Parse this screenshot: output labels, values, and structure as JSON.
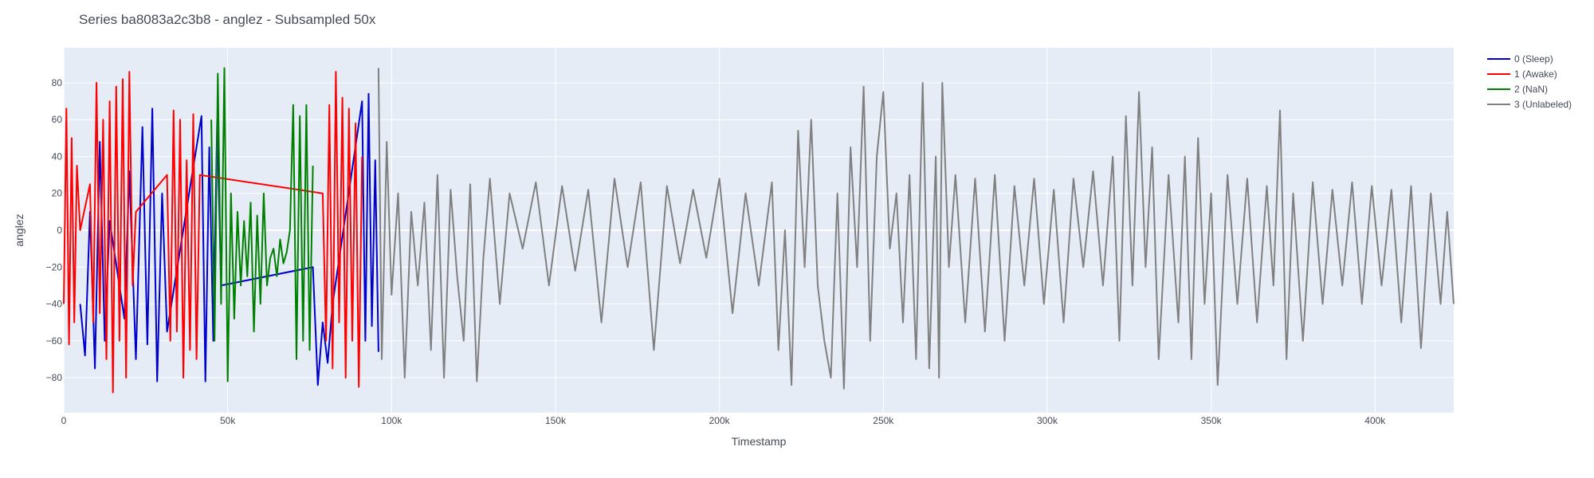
{
  "chart_data": {
    "type": "line",
    "title": "Series ba8083a2c3b8 - anglez - Subsampled 50x",
    "xlabel": "Timestamp",
    "ylabel": "anglez",
    "xlim": [
      0,
      424000
    ],
    "ylim": [
      -99,
      99
    ],
    "x_ticks": [
      0,
      50000,
      100000,
      150000,
      200000,
      250000,
      300000,
      350000,
      400000
    ],
    "x_tick_labels": [
      "0",
      "50k",
      "100k",
      "150k",
      "200k",
      "250k",
      "300k",
      "350k",
      "400k"
    ],
    "y_ticks": [
      -80,
      -60,
      -40,
      -20,
      0,
      20,
      40,
      60,
      80
    ],
    "y_tick_labels": [
      "−80",
      "−60",
      "−40",
      "−20",
      "0",
      "20",
      "40",
      "60",
      "80"
    ],
    "grid": true,
    "legend_position": "top-right",
    "background": "#e5ecf6",
    "series": [
      {
        "name": "0 (Sleep)",
        "color": "#0000cc",
        "x": [
          5000,
          6500,
          8000,
          9500,
          11000,
          12500,
          14000,
          18500,
          20000,
          22000,
          24000,
          25500,
          27000,
          28500,
          30000,
          31500,
          42000,
          43200,
          44400,
          45600,
          46800,
          48000,
          76000,
          77500,
          79000,
          80500,
          82000,
          91000,
          92000,
          93000,
          94000,
          95000,
          96000
        ],
        "y": [
          -40,
          -68,
          10,
          -75,
          48,
          -60,
          5,
          -48,
          32,
          -70,
          56,
          -62,
          66,
          -82,
          20,
          -55,
          62,
          -82,
          45,
          -60,
          60,
          -30,
          -20,
          -84,
          -50,
          -72,
          -40,
          70,
          -60,
          74,
          -52,
          38,
          -66
        ]
      },
      {
        "name": "1 (Awake)",
        "color": "#ff0000",
        "x": [
          0,
          800,
          1600,
          2400,
          3200,
          4000,
          5000,
          8000,
          9000,
          10000,
          11000,
          12000,
          13000,
          14000,
          15000,
          16000,
          17000,
          18000,
          19000,
          20000,
          21000,
          22000,
          31500,
          32500,
          33500,
          34500,
          35500,
          36500,
          37500,
          38500,
          39500,
          40500,
          41500,
          79000,
          80000,
          81000,
          82000,
          83000,
          84000,
          85000,
          86000,
          87000,
          88000,
          89000,
          90000,
          91000
        ],
        "y": [
          -40,
          66,
          -62,
          50,
          -50,
          35,
          0,
          25,
          -50,
          80,
          -45,
          60,
          -70,
          70,
          -88,
          78,
          -60,
          82,
          -80,
          86,
          -30,
          10,
          30,
          -60,
          65,
          -55,
          60,
          -80,
          38,
          -65,
          63,
          -70,
          30,
          20,
          -60,
          68,
          -75,
          86,
          -50,
          72,
          -80,
          66,
          -60,
          58,
          -85,
          40
        ]
      },
      {
        "name": "2 (NaN)",
        "color": "#008000",
        "x": [
          45000,
          46000,
          47000,
          48000,
          49000,
          50000,
          51000,
          52000,
          53000,
          54000,
          55000,
          56000,
          57000,
          58000,
          59000,
          60000,
          61000,
          62000,
          63000,
          64000,
          65000,
          66000,
          67000,
          68000,
          69000,
          70000,
          71000,
          72000,
          73000,
          74000,
          75000,
          76000
        ],
        "y": [
          60,
          -60,
          85,
          -40,
          88,
          -82,
          20,
          -48,
          10,
          -30,
          5,
          -25,
          15,
          -55,
          8,
          -40,
          20,
          -30,
          -15,
          -10,
          -25,
          -5,
          -18,
          -12,
          0,
          68,
          -70,
          62,
          -60,
          68,
          -65,
          35
        ]
      },
      {
        "name": "3 (Unlabeled)",
        "color": "#808080",
        "x": [
          96000,
          97000,
          98500,
          100000,
          102000,
          104000,
          106000,
          108000,
          110000,
          112000,
          114000,
          116000,
          118000,
          120000,
          122000,
          124000,
          126000,
          128000,
          130000,
          133000,
          136000,
          140000,
          144000,
          148000,
          152000,
          156000,
          160000,
          164000,
          168000,
          172000,
          176000,
          180000,
          184000,
          188000,
          192000,
          196000,
          200000,
          204000,
          208000,
          212000,
          216000,
          218000,
          220000,
          222000,
          224000,
          226000,
          228000,
          230000,
          232000,
          234000,
          236000,
          238000,
          240000,
          242000,
          244000,
          246000,
          248000,
          250000,
          252000,
          254000,
          256000,
          258000,
          260000,
          262000,
          264000,
          266000,
          267000,
          268000,
          270000,
          272000,
          275000,
          278000,
          281000,
          284000,
          287000,
          290000,
          293000,
          296000,
          299000,
          302000,
          305000,
          308000,
          311000,
          314000,
          317000,
          320000,
          322000,
          324000,
          326000,
          328000,
          330000,
          332000,
          334000,
          337000,
          340000,
          342000,
          344000,
          346000,
          348000,
          350000,
          352000,
          355000,
          358000,
          361000,
          364000,
          367000,
          369000,
          371000,
          373000,
          375000,
          378000,
          381000,
          384000,
          387000,
          390000,
          393000,
          396000,
          399000,
          402000,
          405000,
          408000,
          411000,
          414000,
          417000,
          420000,
          422000,
          424000
        ],
        "y": [
          88,
          -70,
          48,
          -35,
          20,
          -80,
          10,
          -30,
          15,
          -65,
          30,
          -80,
          22,
          -25,
          -60,
          25,
          -82,
          -15,
          28,
          -40,
          20,
          -10,
          26,
          -30,
          24,
          -22,
          22,
          -50,
          28,
          -20,
          26,
          -65,
          24,
          -18,
          22,
          -15,
          28,
          -45,
          20,
          -30,
          26,
          -65,
          0,
          -84,
          54,
          -20,
          60,
          -30,
          -60,
          -80,
          20,
          -86,
          45,
          -20,
          78,
          -60,
          40,
          75,
          -10,
          20,
          -50,
          30,
          -70,
          80,
          -75,
          40,
          -80,
          80,
          -20,
          30,
          -50,
          28,
          -55,
          30,
          -60,
          24,
          -30,
          28,
          -40,
          22,
          -50,
          28,
          -20,
          32,
          -30,
          40,
          -60,
          62,
          -30,
          75,
          -20,
          45,
          -70,
          30,
          -50,
          40,
          -70,
          50,
          -40,
          20,
          -84,
          30,
          -40,
          28,
          -50,
          24,
          -30,
          65,
          -70,
          20,
          -60,
          26,
          -40,
          22,
          -30,
          26,
          -40,
          24,
          -30,
          22,
          -50,
          24,
          -64,
          20,
          -40,
          10,
          -40
        ]
      }
    ]
  }
}
